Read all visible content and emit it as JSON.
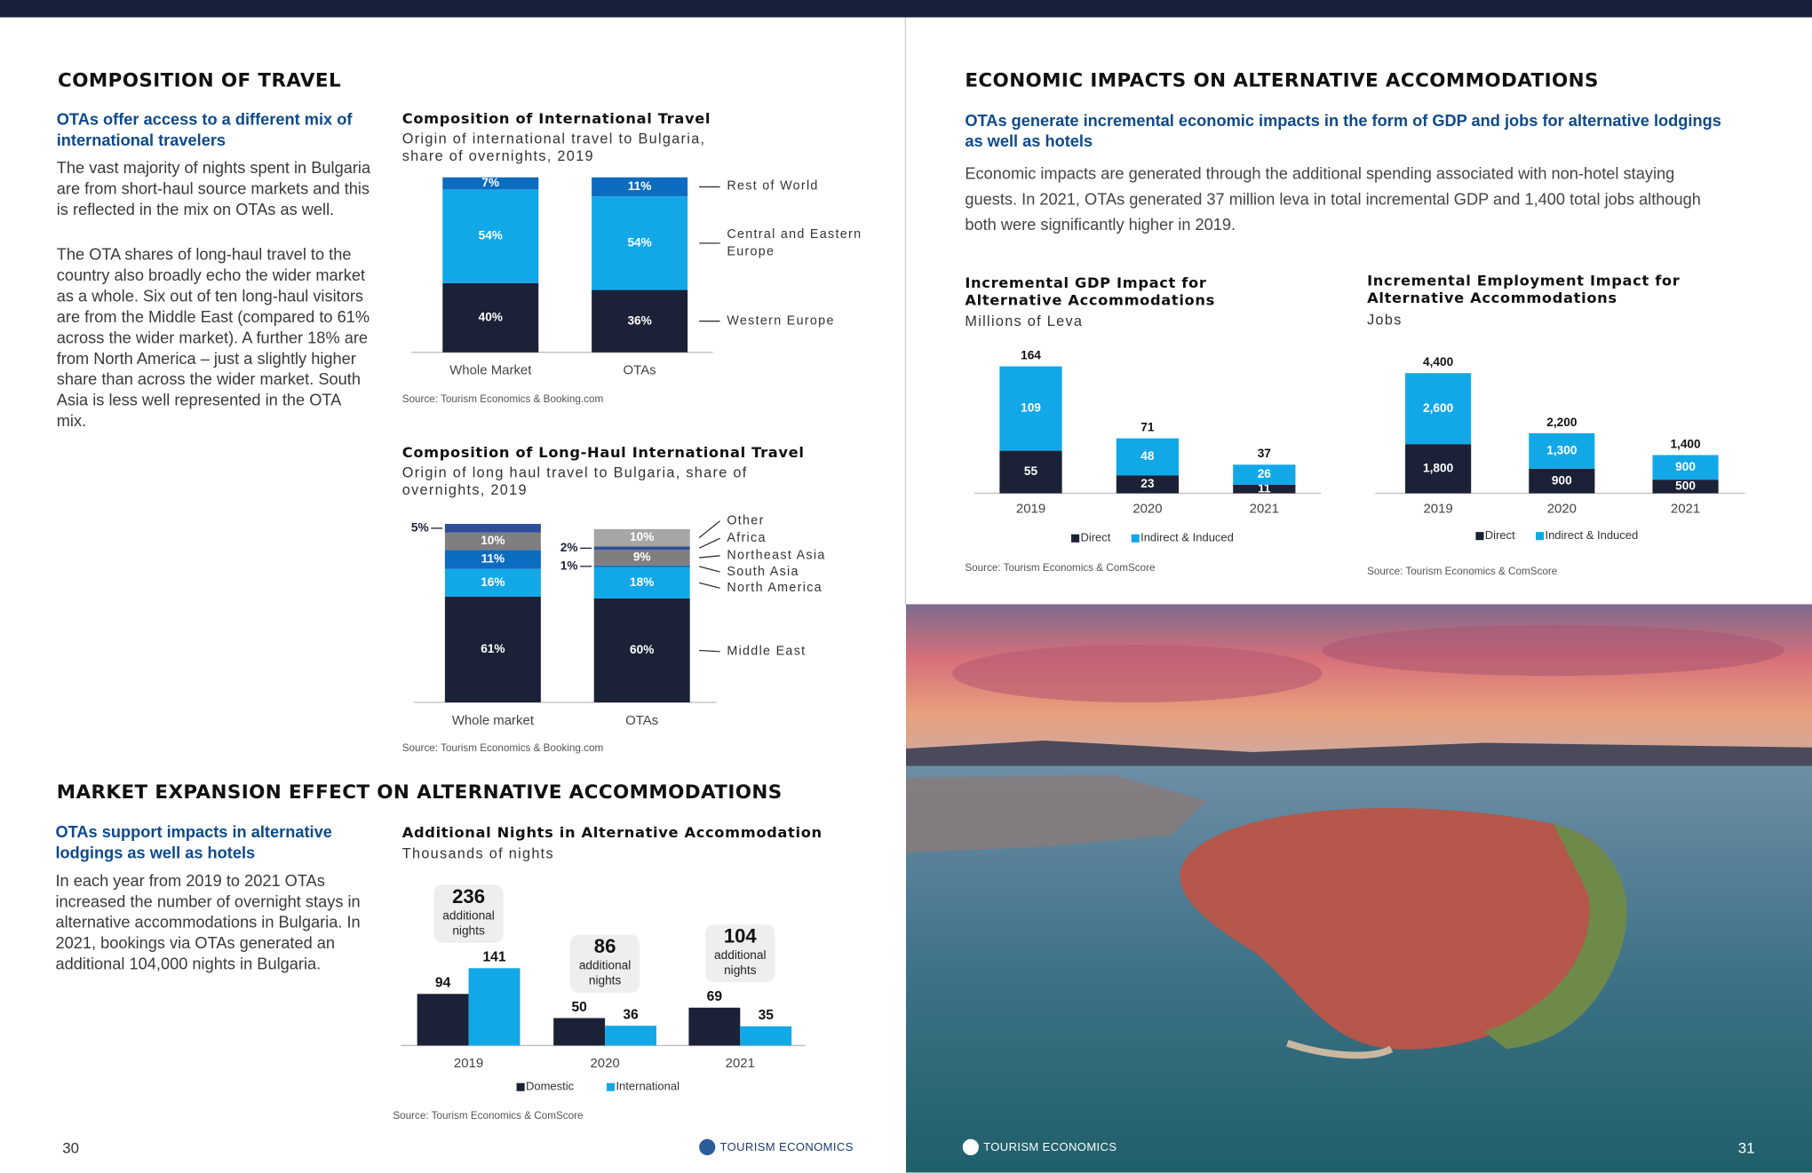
{
  "page_left": {
    "heading_1": "COMPOSITION OF TRAVEL",
    "subheading_1": "OTAs offer access to a different mix of international travelers",
    "paragraphs_1": [
      "The vast majority of nights spent in Bulgaria are from short-haul source markets and this is reflected in the mix on OTAs as well.",
      "The OTA shares of long-haul travel to the country also broadly echo the wider market as a whole. Six out of ten long-haul visitors are from the Middle East (compared to 61% across the wider market). A further 18% are from North America – just a slightly higher share than across the wider market. South Asia is less well represented in the OTA mix."
    ],
    "heading_2": "MARKET EXPANSION EFFECT ON ALTERNATIVE ACCOMMODATIONS",
    "subheading_2": "OTAs support impacts in alternative lodgings as well as hotels",
    "paragraph_2": "In each year from 2019 to 2021 OTAs increased the number of overnight stays in alternative accommodations in Bulgaria. In 2021, bookings via OTAs generated an additional 104,000 nights in Bulgaria.",
    "page_number": "30",
    "logo": "TOURISM ECONOMICS"
  },
  "page_right": {
    "heading": "ECONOMIC IMPACTS ON ALTERNATIVE ACCOMMODATIONS",
    "subheading": "OTAs generate incremental economic impacts in the form of GDP and jobs for alternative lodgings as well as hotels",
    "paragraph": "Economic impacts are generated through the additional spending associated with non-hotel staying guests. In 2021, OTAs generated  37 million leva in total incremental GDP and 1,400 total jobs although both were significantly higher in 2019.",
    "page_number": "31",
    "logo": "TOURISM ECONOMICS"
  },
  "chart_data": [
    {
      "type": "bar",
      "stacked": true,
      "title": "Composition of International Travel",
      "subtitle": "Origin of international travel to Bulgaria, share of overnights, 2019",
      "categories": [
        "Whole Market",
        "OTAs"
      ],
      "series": [
        {
          "name": "Western Europe",
          "color": "#1b2136",
          "values": [
            40,
            36
          ],
          "value_labels": [
            "40%",
            "36%"
          ]
        },
        {
          "name": "Central and Eastern Europe",
          "color": "#12a8e8",
          "values": [
            54,
            54
          ],
          "value_labels": [
            "54%",
            "54%"
          ]
        },
        {
          "name": "Rest of World",
          "color": "#0b6cc0",
          "values": [
            7,
            11
          ],
          "value_labels": [
            "7%",
            "11%"
          ]
        }
      ],
      "source": "Source: Tourism Economics & Booking.com"
    },
    {
      "type": "bar",
      "stacked": true,
      "title": "Composition of Long-Haul International Travel",
      "subtitle": "Origin of long haul travel to Bulgaria, share of overnights, 2019",
      "categories": [
        "Whole market",
        "OTAs"
      ],
      "series": [
        {
          "name": "Middle East",
          "color": "#1b2136",
          "values": [
            61,
            60
          ],
          "value_labels": [
            "61%",
            "60%"
          ]
        },
        {
          "name": "North America",
          "color": "#12a8e8",
          "values": [
            16,
            18
          ],
          "value_labels": [
            "16%",
            "18%"
          ]
        },
        {
          "name": "South Asia",
          "color": "#0b6cc0",
          "values": [
            11,
            1
          ],
          "value_labels": [
            "11%",
            "1%"
          ]
        },
        {
          "name": "Northeast Asia",
          "color": "#7f7f7f",
          "values": [
            10,
            9
          ],
          "value_labels": [
            "10%",
            "9%"
          ]
        },
        {
          "name": "Africa",
          "color": "#2f4e9a",
          "values": [
            5,
            2
          ],
          "value_labels": [
            "5%",
            "2%"
          ]
        },
        {
          "name": "Other",
          "color": "#a6a6a6",
          "values": [
            null,
            10
          ],
          "value_labels": [
            null,
            "10%"
          ]
        }
      ],
      "source": "Source: Tourism Economics & Booking.com"
    },
    {
      "type": "bar",
      "stacked": false,
      "title": "Additional Nights in Alternative Accommodation",
      "subtitle": "Thousands of nights",
      "categories": [
        "2019",
        "2020",
        "2021"
      ],
      "series": [
        {
          "name": "Domestic",
          "color": "#1b2136",
          "values": [
            94,
            50,
            69
          ]
        },
        {
          "name": "International",
          "color": "#12a8e8",
          "values": [
            141,
            36,
            35
          ]
        }
      ],
      "annotations": [
        {
          "value": 236,
          "text": "additional nights"
        },
        {
          "value": 86,
          "text": "additional nights"
        },
        {
          "value": 104,
          "text": "additional nights"
        }
      ],
      "source": "Source: Tourism Economics & ComScore"
    },
    {
      "type": "bar",
      "stacked": true,
      "title": "Incremental GDP Impact for Alternative Accommodations",
      "subtitle": "Millions of Leva",
      "categories": [
        "2019",
        "2020",
        "2021"
      ],
      "series": [
        {
          "name": "Direct",
          "color": "#1b2136",
          "values": [
            55,
            23,
            11
          ]
        },
        {
          "name": "Indirect & Induced",
          "color": "#12a8e8",
          "values": [
            109,
            48,
            26
          ]
        }
      ],
      "totals": [
        164,
        71,
        37
      ],
      "source": "Source: Tourism Economics & ComScore"
    },
    {
      "type": "bar",
      "stacked": true,
      "title": "Incremental Employment Impact for Alternative Accommodations",
      "subtitle": "Jobs",
      "categories": [
        "2019",
        "2020",
        "2021"
      ],
      "series": [
        {
          "name": "Direct",
          "color": "#1b2136",
          "values": [
            1800,
            900,
            500
          ],
          "value_labels": [
            "1,800",
            "900",
            "500"
          ]
        },
        {
          "name": "Indirect & Induced",
          "color": "#12a8e8",
          "values": [
            2600,
            1300,
            900
          ],
          "value_labels": [
            "2,600",
            "1,300",
            "900"
          ]
        }
      ],
      "totals": [
        4400,
        2200,
        1400
      ],
      "total_labels": [
        "4,400",
        "2,200",
        "1,400"
      ],
      "source": "Source: Tourism Economics & ComScore"
    }
  ]
}
